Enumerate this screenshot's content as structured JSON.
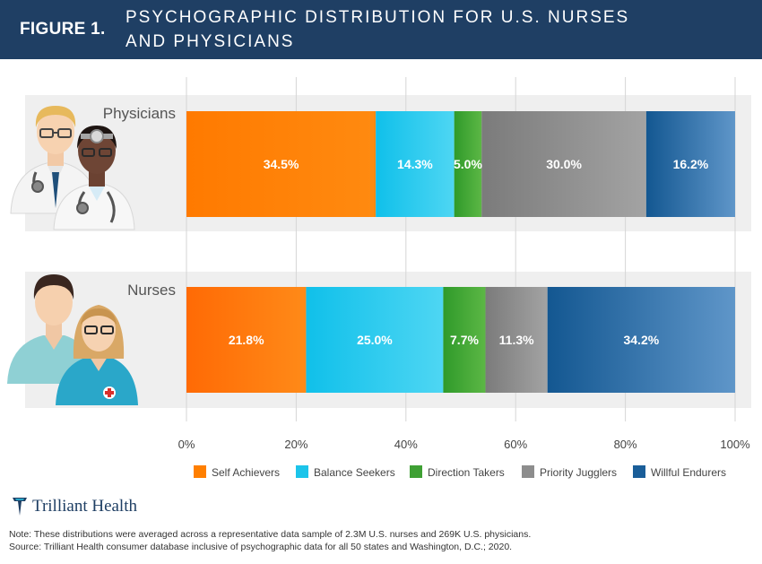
{
  "header": {
    "figure_label": "FIGURE 1.",
    "title_line1": "PSYCHOGRAPHIC DISTRIBUTION FOR U.S. NURSES",
    "title_line2": "AND PHYSICIANS"
  },
  "colors": {
    "header_bg": "#1f3f64",
    "self_achievers": "#ff7f00",
    "balance_seekers": "#1cc4ea",
    "direction_takers": "#3fa034",
    "priority_jugglers": "#8d8d8d",
    "willful_endurers": "#1a5e99"
  },
  "chart_data": {
    "type": "bar",
    "orientation": "horizontal",
    "stacked": true,
    "categories": [
      "Physicians",
      "Nurses"
    ],
    "series": [
      {
        "name": "Self Achievers",
        "values": [
          34.5,
          21.8
        ],
        "color": "#ff7f00"
      },
      {
        "name": "Balance Seekers",
        "values": [
          14.3,
          25.0
        ],
        "color": "#1cc4ea"
      },
      {
        "name": "Direction Takers",
        "values": [
          5.0,
          7.7
        ],
        "color": "#3fa034"
      },
      {
        "name": "Priority Jugglers",
        "values": [
          30.0,
          11.3
        ],
        "color": "#8d8d8d"
      },
      {
        "name": "Willful Endurers",
        "values": [
          16.2,
          34.2
        ],
        "color": "#1a5e99"
      }
    ],
    "data_labels": [
      [
        "34.5%",
        "14.3%",
        "5.0%",
        "30.0%",
        "16.2%"
      ],
      [
        "21.8%",
        "25.0%",
        "7.7%",
        "11.3%",
        "34.2%"
      ]
    ],
    "xlim": [
      0,
      100
    ],
    "x_ticks": [
      0,
      20,
      40,
      60,
      80,
      100
    ],
    "x_tick_labels": [
      "0%",
      "20%",
      "40%",
      "60%",
      "80%",
      "100%"
    ],
    "grid": true,
    "legend_position": "bottom"
  },
  "footer": {
    "logo_text": "Trilliant Health",
    "note": "Note: These distributions were averaged across a representative data sample of 2.3M U.S. nurses and 269K U.S. physicians.",
    "source": "Source: Trilliant Health consumer database inclusive of psychographic data for all 50 states and Washington, D.C.; 2020."
  }
}
